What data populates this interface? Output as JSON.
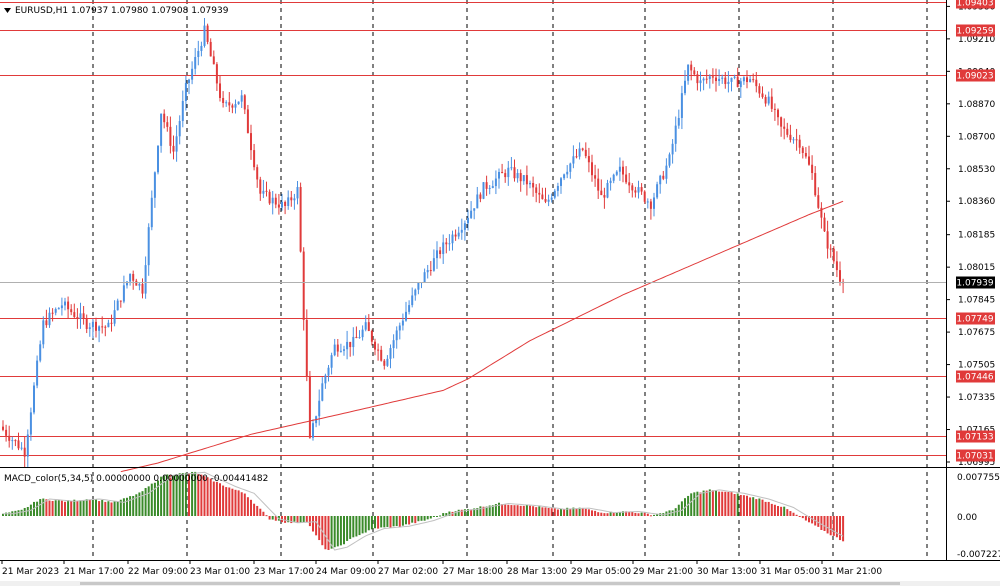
{
  "window": {
    "symbol_line": "EURUSD,H1  1.07937 1.07980 1.07908 1.07939",
    "collapse_icon": "triangle-down-icon"
  },
  "colors": {
    "background": "#ffffff",
    "bull": "#4a90e2",
    "bear": "#e03a3a",
    "ma": "#e03a3a",
    "level": "#e03a3a",
    "grid": "#000000",
    "macd_pos": "#3a8a2a",
    "macd_neg": "#e03a3a",
    "signal": "#c0c0c0",
    "axis_text": "#000000",
    "price_tag_bg": "#000000"
  },
  "price_axis": {
    "min": 1.06995,
    "max": 1.09403,
    "ticks": [
      "1.09380",
      "1.09210",
      "1.09040",
      "1.08870",
      "1.08700",
      "1.08530",
      "1.08360",
      "1.08185",
      "1.08015",
      "1.07845",
      "1.07675",
      "1.07505",
      "1.07335",
      "1.07165",
      "1.06995"
    ],
    "current_price": "1.07939"
  },
  "levels": [
    "1.09403",
    "1.09259",
    "1.09023",
    "1.07749",
    "1.07446",
    "1.07133",
    "1.07031"
  ],
  "time_axis": {
    "labels": [
      "21 Mar 2023",
      "21 Mar 17:00",
      "22 Mar 09:00",
      "23 Mar 01:00",
      "23 Mar 17:00",
      "24 Mar 09:00",
      "27 Mar 02:00",
      "27 Mar 18:00",
      "28 Mar 13:00",
      "29 Mar 05:00",
      "29 Mar 21:00",
      "30 Mar 13:00",
      "31 Mar 05:00",
      "31 Mar 21:00"
    ]
  },
  "indicator": {
    "label": "MACD_color(5,34,5) 0.00000000 0.00000000 -0.00441482",
    "max_label": "0.0077558",
    "zero_label": "0.00",
    "min_label": "-0.0072270",
    "range": [
      -0.007227,
      0.0077558
    ]
  },
  "chart_data": {
    "type": "candlestick",
    "symbol": "EURUSD",
    "timeframe": "H1",
    "ylim": [
      1.06995,
      1.09403
    ],
    "anchors": [
      [
        0,
        1.0718
      ],
      [
        8,
        1.0705
      ],
      [
        14,
        1.0772
      ],
      [
        20,
        1.0782
      ],
      [
        28,
        1.0772
      ],
      [
        35,
        1.077
      ],
      [
        42,
        1.0798
      ],
      [
        46,
        1.079
      ],
      [
        52,
        1.0883
      ],
      [
        56,
        1.0862
      ],
      [
        60,
        1.0895
      ],
      [
        66,
        1.0925
      ],
      [
        72,
        1.0885
      ],
      [
        78,
        1.089
      ],
      [
        84,
        1.084
      ],
      [
        92,
        1.0833
      ],
      [
        96,
        1.0842
      ],
      [
        100,
        1.071
      ],
      [
        104,
        1.074
      ],
      [
        108,
        1.076
      ],
      [
        114,
        1.0762
      ],
      [
        118,
        1.077
      ],
      [
        124,
        1.0752
      ],
      [
        130,
        1.0775
      ],
      [
        136,
        1.0795
      ],
      [
        142,
        1.081
      ],
      [
        150,
        1.0826
      ],
      [
        156,
        1.0843
      ],
      [
        164,
        1.0852
      ],
      [
        170,
        1.0846
      ],
      [
        176,
        1.0834
      ],
      [
        182,
        1.0852
      ],
      [
        188,
        1.0863
      ],
      [
        194,
        1.0838
      ],
      [
        200,
        1.0852
      ],
      [
        206,
        1.0841
      ],
      [
        210,
        1.0835
      ],
      [
        216,
        1.0858
      ],
      [
        222,
        1.0906
      ],
      [
        226,
        1.0898
      ],
      [
        230,
        1.0902
      ],
      [
        236,
        1.0898
      ],
      [
        242,
        1.09
      ],
      [
        248,
        1.0888
      ],
      [
        252,
        1.0874
      ],
      [
        258,
        1.0867
      ],
      [
        262,
        1.085
      ],
      [
        266,
        1.0818
      ],
      [
        271,
        1.0796
      ]
    ],
    "ma_path": [
      [
        0,
        1.068
      ],
      [
        50,
        1.0699
      ],
      [
        80,
        1.0714
      ],
      [
        110,
        1.0725
      ],
      [
        142,
        1.0737
      ],
      [
        150,
        1.0743
      ],
      [
        170,
        1.0763
      ],
      [
        200,
        1.0787
      ],
      [
        230,
        1.0808
      ],
      [
        260,
        1.0829
      ],
      [
        271,
        1.0836
      ]
    ],
    "macd_anchors": [
      [
        0,
        0.0004
      ],
      [
        6,
        0.001
      ],
      [
        12,
        0.003
      ],
      [
        20,
        0.0026
      ],
      [
        28,
        0.003
      ],
      [
        36,
        0.0024
      ],
      [
        44,
        0.004
      ],
      [
        52,
        0.0072
      ],
      [
        62,
        0.0077
      ],
      [
        72,
        0.0052
      ],
      [
        78,
        0.004
      ],
      [
        86,
        -0.0005
      ],
      [
        92,
        -0.0012
      ],
      [
        98,
        -0.001
      ],
      [
        104,
        -0.006
      ],
      [
        108,
        -0.0055
      ],
      [
        114,
        -0.0035
      ],
      [
        120,
        -0.0022
      ],
      [
        128,
        -0.0018
      ],
      [
        136,
        -0.0008
      ],
      [
        144,
        0.0008
      ],
      [
        150,
        0.0012
      ],
      [
        160,
        0.0022
      ],
      [
        170,
        0.0018
      ],
      [
        178,
        0.0012
      ],
      [
        186,
        0.0014
      ],
      [
        194,
        0.0006
      ],
      [
        202,
        0.0008
      ],
      [
        210,
        0.0002
      ],
      [
        216,
        0.001
      ],
      [
        222,
        0.004
      ],
      [
        228,
        0.0046
      ],
      [
        236,
        0.004
      ],
      [
        244,
        0.003
      ],
      [
        252,
        0.0015
      ],
      [
        258,
        -0.0005
      ],
      [
        266,
        -0.003
      ],
      [
        271,
        -0.0044
      ]
    ]
  }
}
